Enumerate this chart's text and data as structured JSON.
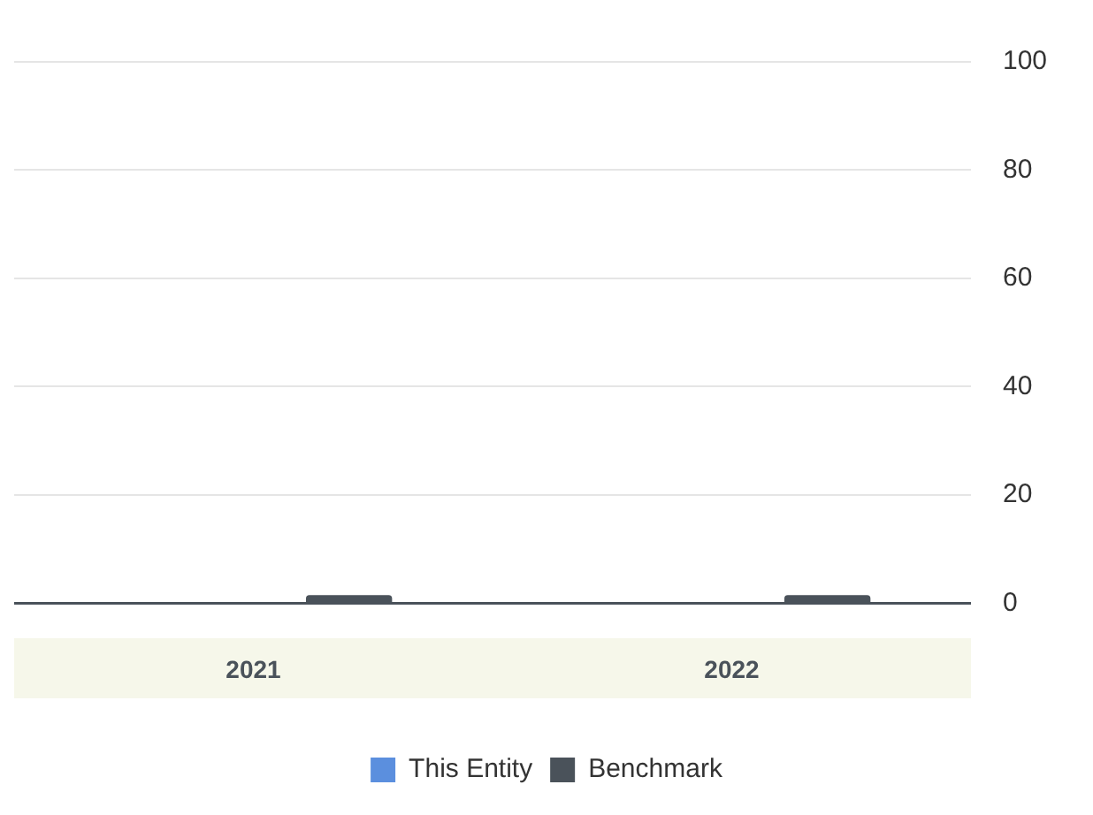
{
  "chart_data": {
    "type": "bar",
    "categories": [
      "2021",
      "2022"
    ],
    "series": [
      {
        "name": "This Entity",
        "color": "#5b8fde",
        "values": [
          0,
          0
        ]
      },
      {
        "name": "Benchmark",
        "color": "#4a525a",
        "values": [
          1.5,
          1.5
        ]
      }
    ],
    "ylim": [
      0,
      100
    ],
    "yticks": [
      0,
      20,
      40,
      60,
      80,
      100
    ],
    "grid": "y",
    "legend": "bottom"
  }
}
